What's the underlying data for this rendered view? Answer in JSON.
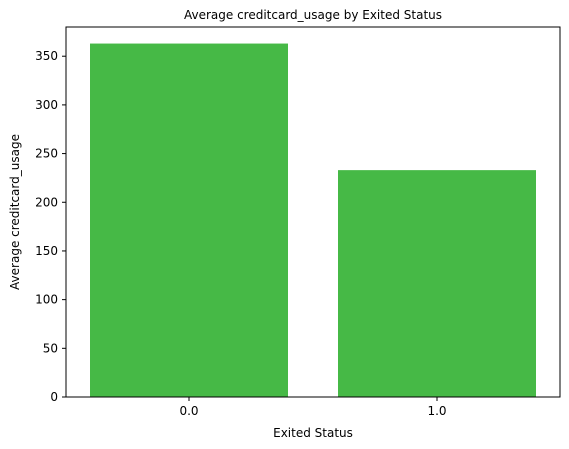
{
  "chart_data": {
    "type": "bar",
    "title": "Average creditcard_usage by Exited Status",
    "xlabel": "Exited Status",
    "ylabel": "Average creditcard_usage",
    "categories": [
      "0.0",
      "1.0"
    ],
    "values": [
      363,
      233
    ],
    "ylim": [
      0,
      380
    ],
    "yticks": [
      0,
      50,
      100,
      150,
      200,
      250,
      300,
      350
    ],
    "grid": false,
    "legend": "none",
    "bar_color": "#46b946"
  }
}
